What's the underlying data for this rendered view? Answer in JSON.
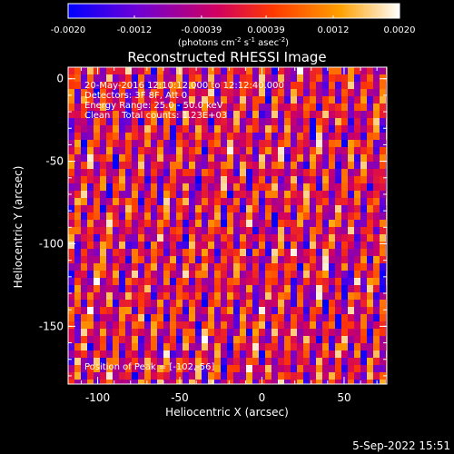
{
  "chart_data": {
    "type": "heatmap",
    "title": "Reconstructed RHESSI Image",
    "xlabel": "Heliocentric X (arcsec)",
    "ylabel": "Heliocentric Y (arcsec)",
    "xlim": [
      -118,
      76
    ],
    "ylim": [
      -185,
      7
    ],
    "x_ticks": [
      "-100",
      "-50",
      "0",
      "50"
    ],
    "y_ticks": [
      "0",
      "-50",
      "-100",
      "-150"
    ],
    "colorbar": {
      "label_pre": "(photons cm",
      "label_exp1": "-2",
      "label_mid1": " s",
      "label_exp2": "-1",
      "label_mid2": " asec",
      "label_exp3": "-2",
      "label_post": ")",
      "vmin": -0.002,
      "vmax": 0.002,
      "ticks": [
        "-0.0020",
        "-0.0012",
        "-0.00039",
        "0.00039",
        "0.0012",
        "0.0020"
      ],
      "colors": [
        "#0000ff",
        "#6a00d8",
        "#d10060",
        "#ff3a00",
        "#ffa000",
        "#ffffff"
      ]
    },
    "annotations": {
      "line1": "20-May-2016 12:10:12.000 to 12:12:40.000",
      "line2": "Detectors: 3F 8F, Att 0",
      "line3": "Energy Range: 25.0 - 50.0 keV",
      "line4": "Clean    Total counts: 1.23E+03",
      "peak": "Position of Peak = [-102,-56]"
    },
    "grid": false
  },
  "footer": {
    "date": "5-Sep-2022 15:51"
  }
}
